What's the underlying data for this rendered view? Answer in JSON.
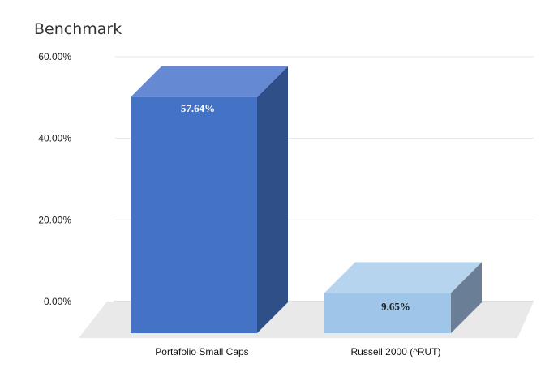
{
  "chart_data": {
    "type": "bar",
    "title": "Benchmark",
    "xlabel": "",
    "ylabel": "",
    "categories": [
      "Portafolio Small Caps",
      "Russell 2000 (^RUT)"
    ],
    "values": [
      57.64,
      9.65
    ],
    "data_labels": [
      "57.64%",
      "9.65%"
    ],
    "ylim": [
      0,
      60
    ],
    "y_ticks": [
      0,
      20,
      40,
      60
    ],
    "y_tick_labels": [
      "0.00%",
      "20.00%",
      "40.00%",
      "60.00%"
    ],
    "grid": true,
    "legend": "none",
    "three_d": true,
    "colors": {
      "bar_0": {
        "front": "#4472c4",
        "top": "#6589d2",
        "side": "#2f4f89"
      },
      "bar_1": {
        "front": "#9fc5e8",
        "top": "#b7d4ef",
        "side": "#6a7f96"
      },
      "floor": "#e9e9e9",
      "grid": "#e4e4e4",
      "label_0": "#ffffff",
      "label_1": "#222222"
    }
  }
}
